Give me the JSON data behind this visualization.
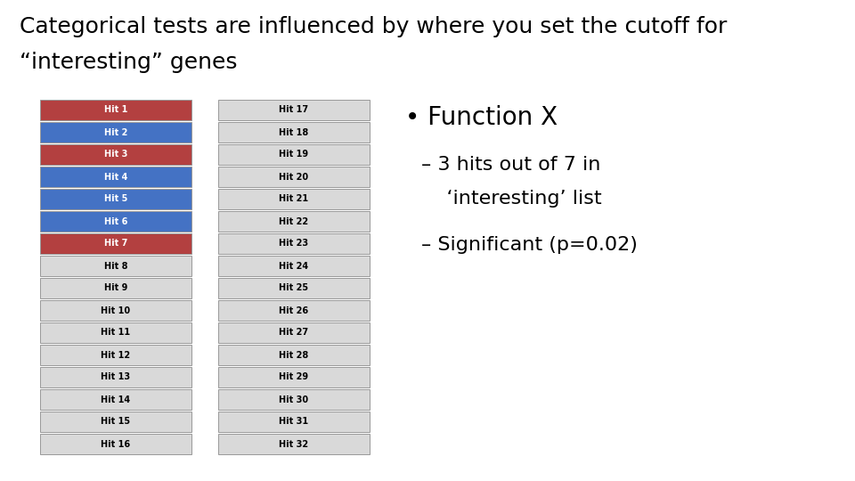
{
  "title_line1": "Categorical tests are influenced by where you set the cutoff for",
  "title_line2": "“interesting” genes",
  "col1_labels": [
    "Hit 1",
    "Hit 2",
    "Hit 3",
    "Hit 4",
    "Hit 5",
    "Hit 6",
    "Hit 7",
    "Hit 8",
    "Hit 9",
    "Hit 10",
    "Hit 11",
    "Hit 12",
    "Hit 13",
    "Hit 14",
    "Hit 15",
    "Hit 16"
  ],
  "col2_labels": [
    "Hit 17",
    "Hit 18",
    "Hit 19",
    "Hit 20",
    "Hit 21",
    "Hit 22",
    "Hit 23",
    "Hit 24",
    "Hit 25",
    "Hit 26",
    "Hit 27",
    "Hit 28",
    "Hit 29",
    "Hit 30",
    "Hit 31",
    "Hit 32"
  ],
  "col1_colors": [
    "#b34040",
    "#4472c4",
    "#b34040",
    "#4472c4",
    "#4472c4",
    "#4472c4",
    "#b34040",
    "#d9d9d9",
    "#d9d9d9",
    "#d9d9d9",
    "#d9d9d9",
    "#d9d9d9",
    "#d9d9d9",
    "#d9d9d9",
    "#d9d9d9",
    "#d9d9d9"
  ],
  "col2_colors": [
    "#d9d9d9",
    "#d9d9d9",
    "#d9d9d9",
    "#d9d9d9",
    "#d9d9d9",
    "#d9d9d9",
    "#d9d9d9",
    "#d9d9d9",
    "#d9d9d9",
    "#d9d9d9",
    "#d9d9d9",
    "#d9d9d9",
    "#d9d9d9",
    "#d9d9d9",
    "#d9d9d9",
    "#d9d9d9"
  ],
  "col1_text_colors": [
    "white",
    "white",
    "white",
    "white",
    "white",
    "white",
    "white",
    "black",
    "black",
    "black",
    "black",
    "black",
    "black",
    "black",
    "black",
    "black"
  ],
  "col2_text_colors": [
    "black",
    "black",
    "black",
    "black",
    "black",
    "black",
    "black",
    "black",
    "black",
    "black",
    "black",
    "black",
    "black",
    "black",
    "black",
    "black"
  ],
  "bullet_text": "• Function X",
  "sub_text1": "– 3 hits out of 7 in",
  "sub_text2": "    ‘interesting’ list",
  "sub_text3": "– Significant (p=0.02)",
  "bg_color": "#ffffff",
  "title_fontsize": 18,
  "label_fontsize": 7,
  "box_border_color": "#999999"
}
